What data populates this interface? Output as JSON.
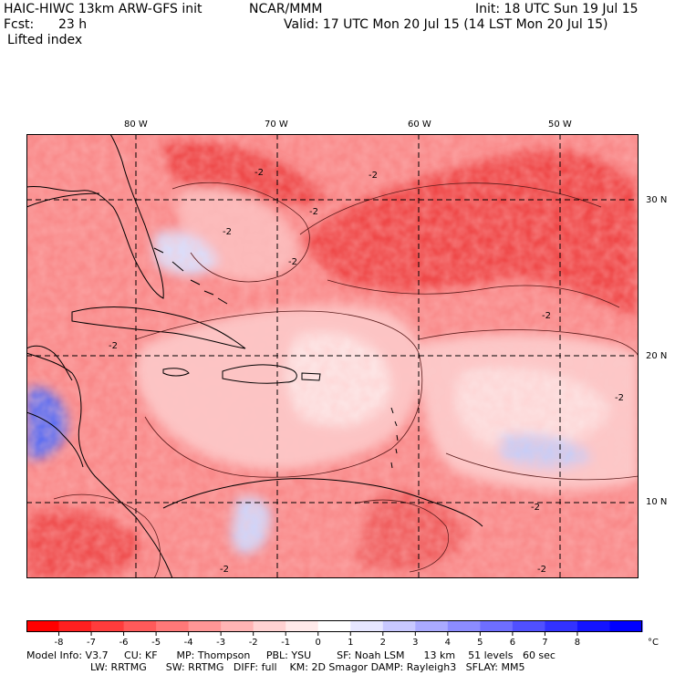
{
  "header": {
    "model_title": "HAIC-HIWC 13km ARW-GFS init",
    "org": "NCAR/MMM",
    "init": "Init: 18 UTC Sun 19 Jul 15",
    "fcst_label": "Fcst:",
    "fcst_value": "23 h",
    "valid": "Valid: 17 UTC Mon 20 Jul 15 (14 LST Mon 20 Jul 15)",
    "field": "Lifted index"
  },
  "map": {
    "lon_labels": [
      "80 W",
      "70 W",
      "60 W",
      "50 W"
    ],
    "lat_labels": [
      "30 N",
      "20 N",
      "10 N"
    ],
    "contour_labels": [
      "-2",
      "-2",
      "-2",
      "-2",
      "-2",
      "-2",
      "-2",
      "-2",
      "-2",
      "-2",
      "-2"
    ],
    "colors": {
      "deep_red": "#ee3b3b",
      "mid_red": "#f76a6a",
      "light_red": "#fb9999",
      "pale_red": "#fdcaca",
      "white": "#ffffff",
      "pale_blue": "#cdd4ff",
      "mid_blue": "#8a96ff",
      "deep_blue": "#3a4af5",
      "coast": "#000000"
    }
  },
  "colorbar": {
    "colors": [
      "#ff0000",
      "#ff2020",
      "#ff3c3c",
      "#ff5a5a",
      "#ff7878",
      "#ff9696",
      "#ffb4b4",
      "#ffd2d2",
      "#ffeaea",
      "#ffffff",
      "#e6e6ff",
      "#c8c8ff",
      "#aaaaff",
      "#8c8cff",
      "#6e6eff",
      "#5050ff",
      "#3232ff",
      "#1414ff",
      "#0000ff"
    ],
    "tick_labels": [
      "-8",
      "-7",
      "-6",
      "-5",
      "-4",
      "-3",
      "-2",
      "-1",
      "0",
      "1",
      "2",
      "3",
      "4",
      "5",
      "6",
      "7",
      "8"
    ],
    "unit": "°C"
  },
  "footer": {
    "line1": "Model Info: V3.7     CU: KF      MP: Thompson     PBL: YSU        SF: Noah LSM      13 km    51 levels   60 sec",
    "line2": "LW: RRTMG      SW: RRTMG   DIFF: full    KM: 2D Smagor DAMP: Rayleigh3   SFLAY: MM5"
  }
}
